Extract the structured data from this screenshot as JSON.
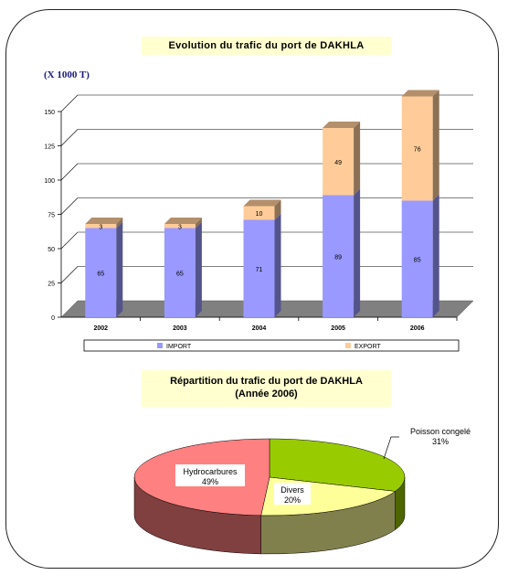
{
  "chart_data": [
    {
      "type": "bar",
      "stacked": true,
      "title": "Evolution du trafic du port de DAKHLA",
      "unit_label": "(X 1000 T)",
      "categories": [
        "2002",
        "2003",
        "2004",
        "2005",
        "2006"
      ],
      "series": [
        {
          "name": "IMPORT",
          "values": [
            65,
            65,
            71,
            89,
            85
          ],
          "color": "#9999ff"
        },
        {
          "name": "EXPORT",
          "values": [
            3,
            3,
            10,
            49,
            76
          ],
          "color": "#ffcc99"
        }
      ],
      "yticks": [
        "0",
        "25",
        "50",
        "75",
        "100",
        "125",
        "150"
      ],
      "ylim": [
        0,
        150
      ],
      "grid": true,
      "legend": "bottom"
    },
    {
      "type": "pie",
      "title": "Répartition du trafic du port de DAKHLA",
      "subtitle": "(Année 2006)",
      "slices": [
        {
          "label": "Poisson congelé",
          "value": 31,
          "pct_label": "31%",
          "color": "#99cc00"
        },
        {
          "label": "Divers",
          "value": 20,
          "pct_label": "20%",
          "color": "#ffff99"
        },
        {
          "label": "Hydrocarbures",
          "value": 49,
          "pct_label": "49%",
          "color": "#ff8080"
        }
      ]
    }
  ]
}
